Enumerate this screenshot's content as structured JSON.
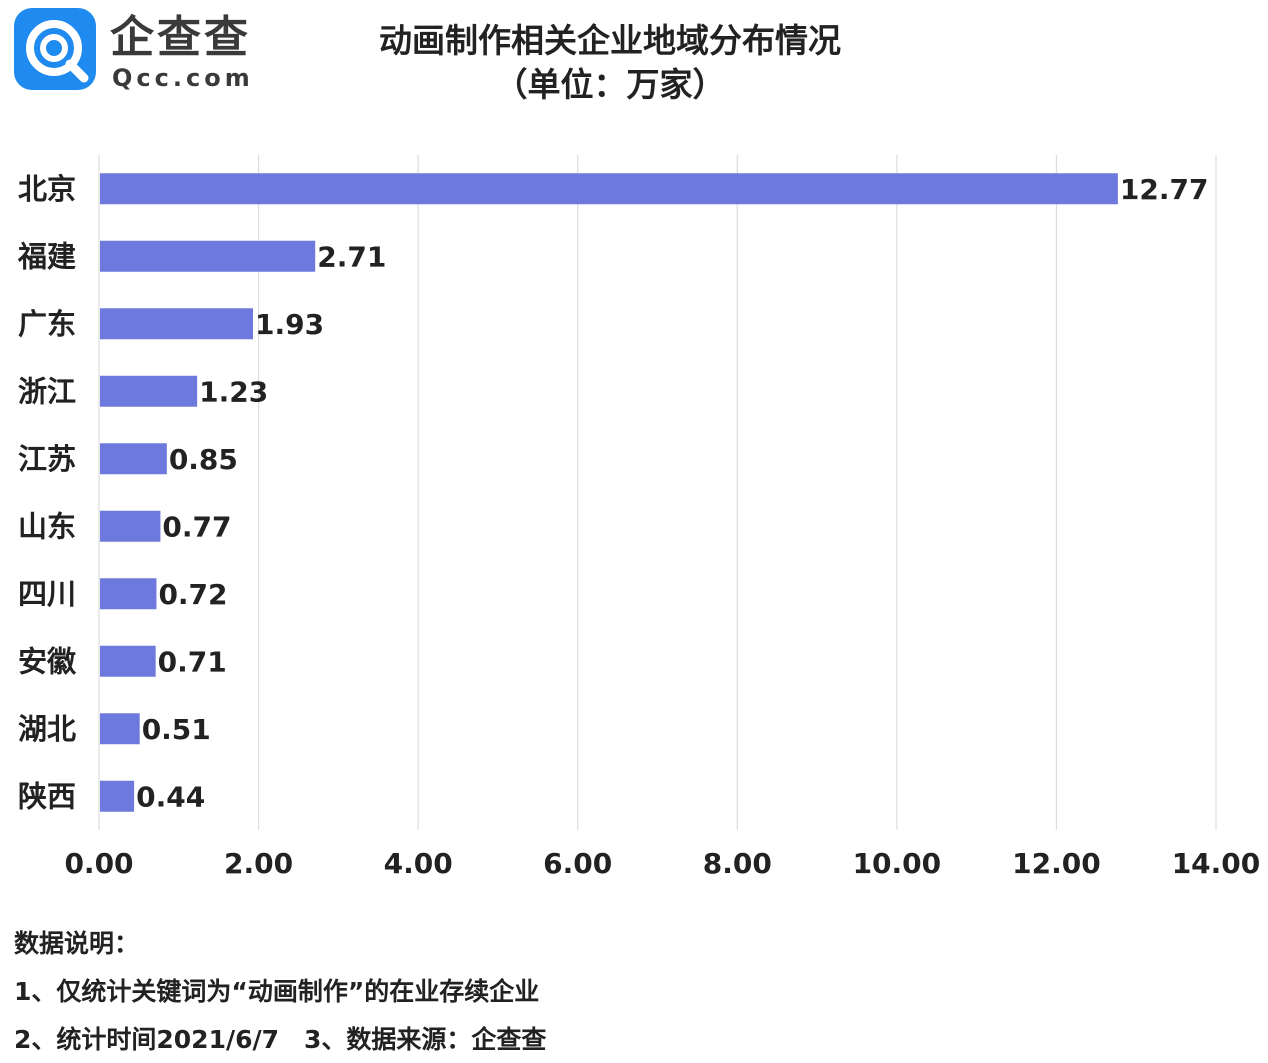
{
  "logo": {
    "brand_cn": "企查查",
    "brand_en": "Qcc.com",
    "icon": "qcc-logo-icon",
    "color": "#1f8bf0"
  },
  "chart_data": {
    "type": "bar",
    "orientation": "horizontal",
    "title": "动画制作相关企业地域分布情况",
    "subtitle": "（单位：万家）",
    "categories": [
      "北京",
      "福建",
      "广东",
      "浙江",
      "江苏",
      "山东",
      "四川",
      "安徽",
      "湖北",
      "陕西"
    ],
    "values": [
      12.77,
      2.71,
      1.93,
      1.23,
      0.85,
      0.77,
      0.72,
      0.71,
      0.51,
      0.44
    ],
    "value_labels": [
      "12.77",
      "2.71",
      "1.93",
      "1.23",
      "0.85",
      "0.77",
      "0.72",
      "0.71",
      "0.51",
      "0.44"
    ],
    "xlim": [
      0,
      14
    ],
    "xticks": [
      0,
      2,
      4,
      6,
      8,
      10,
      12,
      14
    ],
    "xtick_labels": [
      "0.00",
      "2.00",
      "4.00",
      "6.00",
      "8.00",
      "10.00",
      "12.00",
      "14.00"
    ],
    "xlabel": "",
    "ylabel": "",
    "grid": "vertical",
    "bar_color": "#6d79dc",
    "grid_color": "#dddddd"
  },
  "notes": {
    "heading": "数据说明：",
    "line1": "1、仅统计关键词为“动画制作”的在业存续企业",
    "line2": "2、统计时间2021/6/7　3、数据来源：企查查"
  }
}
